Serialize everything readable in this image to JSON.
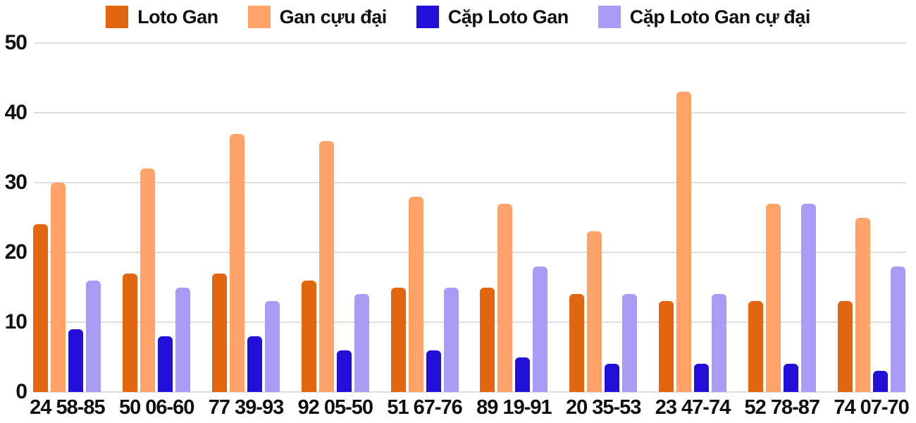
{
  "chart_data": {
    "type": "bar",
    "categories": [
      "24 58-85",
      "50 06-60",
      "77 39-93",
      "92 05-50",
      "51 67-76",
      "89 19-91",
      "20 35-53",
      "23 47-74",
      "52 78-87",
      "74 07-70"
    ],
    "series": [
      {
        "name": "Loto Gan",
        "color": "#e2660f",
        "values": [
          24,
          17,
          17,
          16,
          15,
          15,
          14,
          13,
          13,
          13
        ]
      },
      {
        "name": "Gan cựu đại",
        "color": "#ffa36b",
        "values": [
          30,
          32,
          37,
          36,
          28,
          27,
          23,
          43,
          27,
          25
        ]
      },
      {
        "name": "Cặp Loto Gan",
        "color": "#2310d8",
        "values": [
          9,
          8,
          8,
          6,
          6,
          5,
          4,
          4,
          4,
          3
        ]
      },
      {
        "name": "Cặp Loto Gan cự đại",
        "color": "#a89cf5",
        "values": [
          16,
          15,
          13,
          14,
          15,
          18,
          14,
          14,
          27,
          18
        ]
      }
    ],
    "title": "",
    "xlabel": "",
    "ylabel": "",
    "ylim": [
      0,
      50
    ],
    "yticks": [
      0,
      10,
      20,
      30,
      40,
      50
    ],
    "grid": true,
    "legend_position": "top",
    "gridline_color": "#dedede",
    "text_color": "#0f0f0f",
    "background": "#ffffff"
  }
}
